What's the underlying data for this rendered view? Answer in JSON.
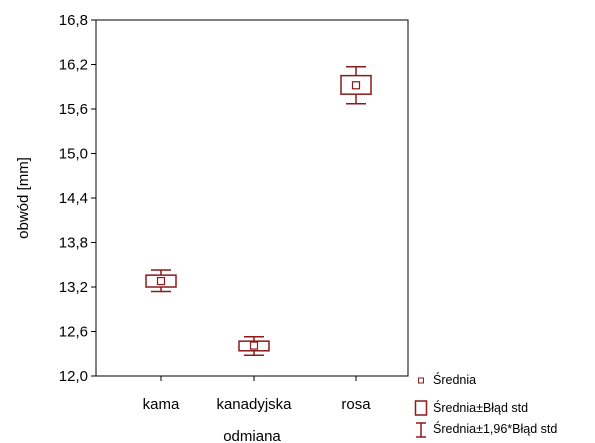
{
  "chart_data": {
    "type": "box",
    "title": "",
    "xlabel": "odmiana",
    "ylabel": "obwód  [mm]",
    "categories": [
      "kama",
      "kanadyjska",
      "rosa"
    ],
    "ylim": [
      12.0,
      16.8
    ],
    "yticks": [
      "12,0",
      "12,6",
      "13,2",
      "13,8",
      "14,4",
      "15,0",
      "15,6",
      "16,2",
      "16,8"
    ],
    "ytick_values": [
      12.0,
      12.6,
      13.2,
      13.8,
      14.4,
      15.0,
      15.6,
      16.2,
      16.8
    ],
    "series": [
      {
        "category": "kama",
        "mean": 13.28,
        "se_low": 13.2,
        "se_high": 13.36,
        "ci_low": 13.14,
        "ci_high": 13.43
      },
      {
        "category": "kanadyjska",
        "mean": 12.41,
        "se_low": 12.34,
        "se_high": 12.47,
        "ci_low": 12.28,
        "ci_high": 12.53
      },
      {
        "category": "rosa",
        "mean": 15.92,
        "se_low": 15.8,
        "se_high": 16.05,
        "ci_low": 15.67,
        "ci_high": 16.17
      }
    ],
    "legend": {
      "placement": "bottom-right",
      "entries": [
        "Średnia",
        "Średnia±Błąd std",
        "Średnia±1,96*Błąd std"
      ]
    },
    "grid": false,
    "color": "#8b1a1a"
  }
}
